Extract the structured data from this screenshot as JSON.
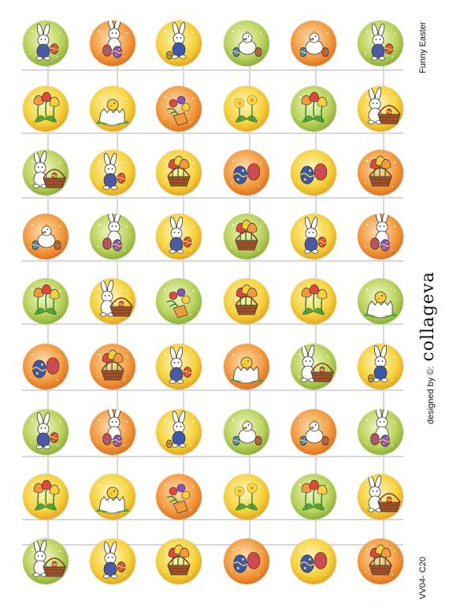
{
  "sheet": {
    "title": "Funny Easter",
    "credit_label": "designed by ©:",
    "brand": "collageva",
    "code": "VV04- C20",
    "colors": {
      "green": "#b9d25a",
      "orange": "#f39a3c",
      "yellow": "#f6d23a",
      "cut_line": "#d8d8d8"
    }
  },
  "grid": {
    "columns": 6,
    "rows": [
      [
        {
          "motif": "bunny-with-egg",
          "bg": "green"
        },
        {
          "motif": "bunny-with-eggs",
          "bg": "orange"
        },
        {
          "motif": "sitting-bunny",
          "bg": "yellow"
        },
        {
          "motif": "chick-with-eggs",
          "bg": "green"
        },
        {
          "motif": "chick-with-eggs",
          "bg": "orange"
        },
        {
          "motif": "bunny-with-egg",
          "bg": "green"
        }
      ],
      [
        {
          "motif": "tulips",
          "bg": "yellow"
        },
        {
          "motif": "hatching-chick",
          "bg": "yellow"
        },
        {
          "motif": "flower-bouquet",
          "bg": "orange"
        },
        {
          "motif": "daffodils",
          "bg": "yellow"
        },
        {
          "motif": "tulips",
          "bg": "green"
        },
        {
          "motif": "bunny-with-basket",
          "bg": "yellow"
        }
      ],
      [
        {
          "motif": "bunny-with-basket",
          "bg": "green"
        },
        {
          "motif": "bunny-with-egg",
          "bg": "yellow"
        },
        {
          "motif": "flower-basket",
          "bg": "yellow"
        },
        {
          "motif": "painted-eggs",
          "bg": "orange"
        },
        {
          "motif": "painted-eggs",
          "bg": "yellow"
        },
        {
          "motif": "flower-basket",
          "bg": "orange"
        }
      ],
      [
        {
          "motif": "chick-with-eggs",
          "bg": "orange"
        },
        {
          "motif": "bunny-with-eggs",
          "bg": "green"
        },
        {
          "motif": "bunny-with-egg",
          "bg": "yellow"
        },
        {
          "motif": "flower-basket",
          "bg": "green"
        },
        {
          "motif": "bunny-with-egg",
          "bg": "yellow"
        },
        {
          "motif": "bunny-with-eggs",
          "bg": "orange"
        }
      ],
      [
        {
          "motif": "tulips",
          "bg": "green"
        },
        {
          "motif": "bunny-with-basket",
          "bg": "yellow"
        },
        {
          "motif": "flower-bouquet",
          "bg": "green"
        },
        {
          "motif": "flower-basket",
          "bg": "yellow"
        },
        {
          "motif": "tulips",
          "bg": "yellow"
        },
        {
          "motif": "hatching-chick",
          "bg": "green"
        }
      ],
      [
        {
          "motif": "painted-eggs",
          "bg": "orange"
        },
        {
          "motif": "flower-basket",
          "bg": "orange"
        },
        {
          "motif": "bunny-with-egg",
          "bg": "yellow"
        },
        {
          "motif": "hatching-chick",
          "bg": "orange"
        },
        {
          "motif": "bunny-with-basket",
          "bg": "green"
        },
        {
          "motif": "sitting-bunny",
          "bg": "yellow"
        }
      ],
      [
        {
          "motif": "bunny-with-egg",
          "bg": "green"
        },
        {
          "motif": "bunny-with-eggs",
          "bg": "orange"
        },
        {
          "motif": "sitting-bunny",
          "bg": "yellow"
        },
        {
          "motif": "chick-with-eggs",
          "bg": "green"
        },
        {
          "motif": "chick-with-eggs",
          "bg": "orange"
        },
        {
          "motif": "bunny-with-eggs",
          "bg": "green"
        }
      ],
      [
        {
          "motif": "tulips",
          "bg": "yellow"
        },
        {
          "motif": "hatching-chick",
          "bg": "yellow"
        },
        {
          "motif": "flower-bouquet",
          "bg": "orange"
        },
        {
          "motif": "daffodils",
          "bg": "yellow"
        },
        {
          "motif": "tulips",
          "bg": "green"
        },
        {
          "motif": "bunny-with-basket",
          "bg": "yellow"
        }
      ],
      [
        {
          "motif": "bunny-with-basket",
          "bg": "green"
        },
        {
          "motif": "bunny-with-egg",
          "bg": "yellow"
        },
        {
          "motif": "flower-basket",
          "bg": "yellow"
        },
        {
          "motif": "painted-eggs",
          "bg": "orange"
        },
        {
          "motif": "painted-eggs",
          "bg": "yellow"
        },
        {
          "motif": "flower-basket",
          "bg": "orange"
        }
      ]
    ]
  }
}
